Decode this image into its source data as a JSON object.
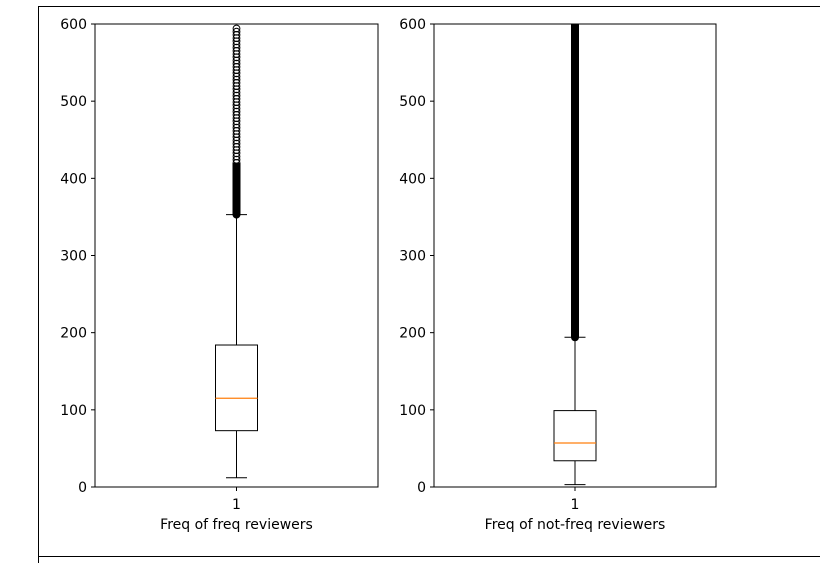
{
  "chart_data": [
    {
      "type": "box",
      "xlabel": "Freq of freq reviewers",
      "ylim": [
        0,
        600
      ],
      "yticks": [
        0,
        100,
        200,
        300,
        400,
        500,
        600
      ],
      "xtick_labels": [
        "1"
      ],
      "box": {
        "whisker_low": 12,
        "q1": 73,
        "median": 115,
        "q3": 184,
        "whisker_high": 353,
        "outlier_start": 353,
        "outlier_end": 600,
        "dense_outliers_to": 420
      },
      "grid": false
    },
    {
      "type": "box",
      "xlabel": "Freq of not-freq reviewers",
      "ylim": [
        0,
        600
      ],
      "yticks": [
        0,
        100,
        200,
        300,
        400,
        500,
        600
      ],
      "xtick_labels": [
        "1"
      ],
      "box": {
        "whisker_low": 3,
        "q1": 34,
        "median": 57,
        "q3": 99,
        "whisker_high": 194,
        "outlier_start": 194,
        "outlier_end": 600,
        "dense_outliers_to": 600
      },
      "grid": false
    }
  ],
  "colors": {
    "box": "#000000",
    "median": "#ff7f0e",
    "background": "#ffffff"
  }
}
